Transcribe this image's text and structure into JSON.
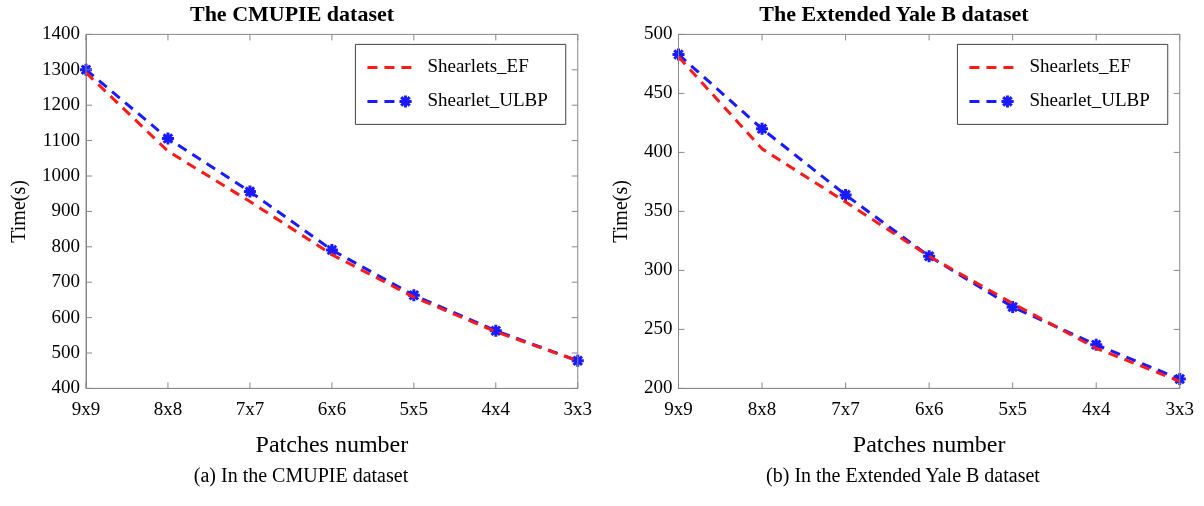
{
  "chart_data": [
    {
      "type": "line",
      "title": "The CMUPIE dataset",
      "xlabel": "Patches number",
      "ylabel": "Time(s)",
      "categories": [
        "9x9",
        "8x8",
        "7x7",
        "6x6",
        "5x5",
        "4x4",
        "3x3"
      ],
      "series": [
        {
          "name": "Shearlets_EF",
          "color": "#ff1a1a",
          "marker": "none",
          "values": [
            1292,
            1070,
            928,
            778,
            658,
            560,
            478
          ]
        },
        {
          "name": "Shearlet_ULBP",
          "color": "#1a1aff",
          "marker": "cross",
          "values": [
            1300,
            1106,
            956,
            791,
            663,
            563,
            478
          ]
        }
      ],
      "ylim": [
        400,
        1400
      ],
      "yticks": [
        400,
        500,
        600,
        700,
        800,
        900,
        1000,
        1100,
        1200,
        1300,
        1400
      ],
      "grid": false,
      "legend": "top right",
      "line_style": "dashed",
      "annotations": [
        "(a) In the CMUPIE dataset"
      ]
    },
    {
      "type": "line",
      "title": "The Extended Yale B dataset",
      "xlabel": "Patches number",
      "ylabel": "Time(s)",
      "categories": [
        "9x9",
        "8x8",
        "7x7",
        "6x6",
        "5x5",
        "4x4",
        "3x3"
      ],
      "series": [
        {
          "name": "Shearlets_EF",
          "color": "#ff1a1a",
          "marker": "none",
          "values": [
            481,
            403,
            358,
            312,
            272,
            234,
            206
          ]
        },
        {
          "name": "Shearlet_ULBP",
          "color": "#1a1aff",
          "marker": "cross",
          "values": [
            483,
            420,
            364,
            312,
            269,
            237,
            208
          ]
        }
      ],
      "ylim": [
        200,
        500
      ],
      "yticks": [
        200,
        250,
        300,
        350,
        400,
        450,
        500
      ],
      "grid": false,
      "legend": "top right",
      "line_style": "dashed",
      "annotations": [
        "(b) In the Extended Yale B dataset"
      ]
    }
  ]
}
